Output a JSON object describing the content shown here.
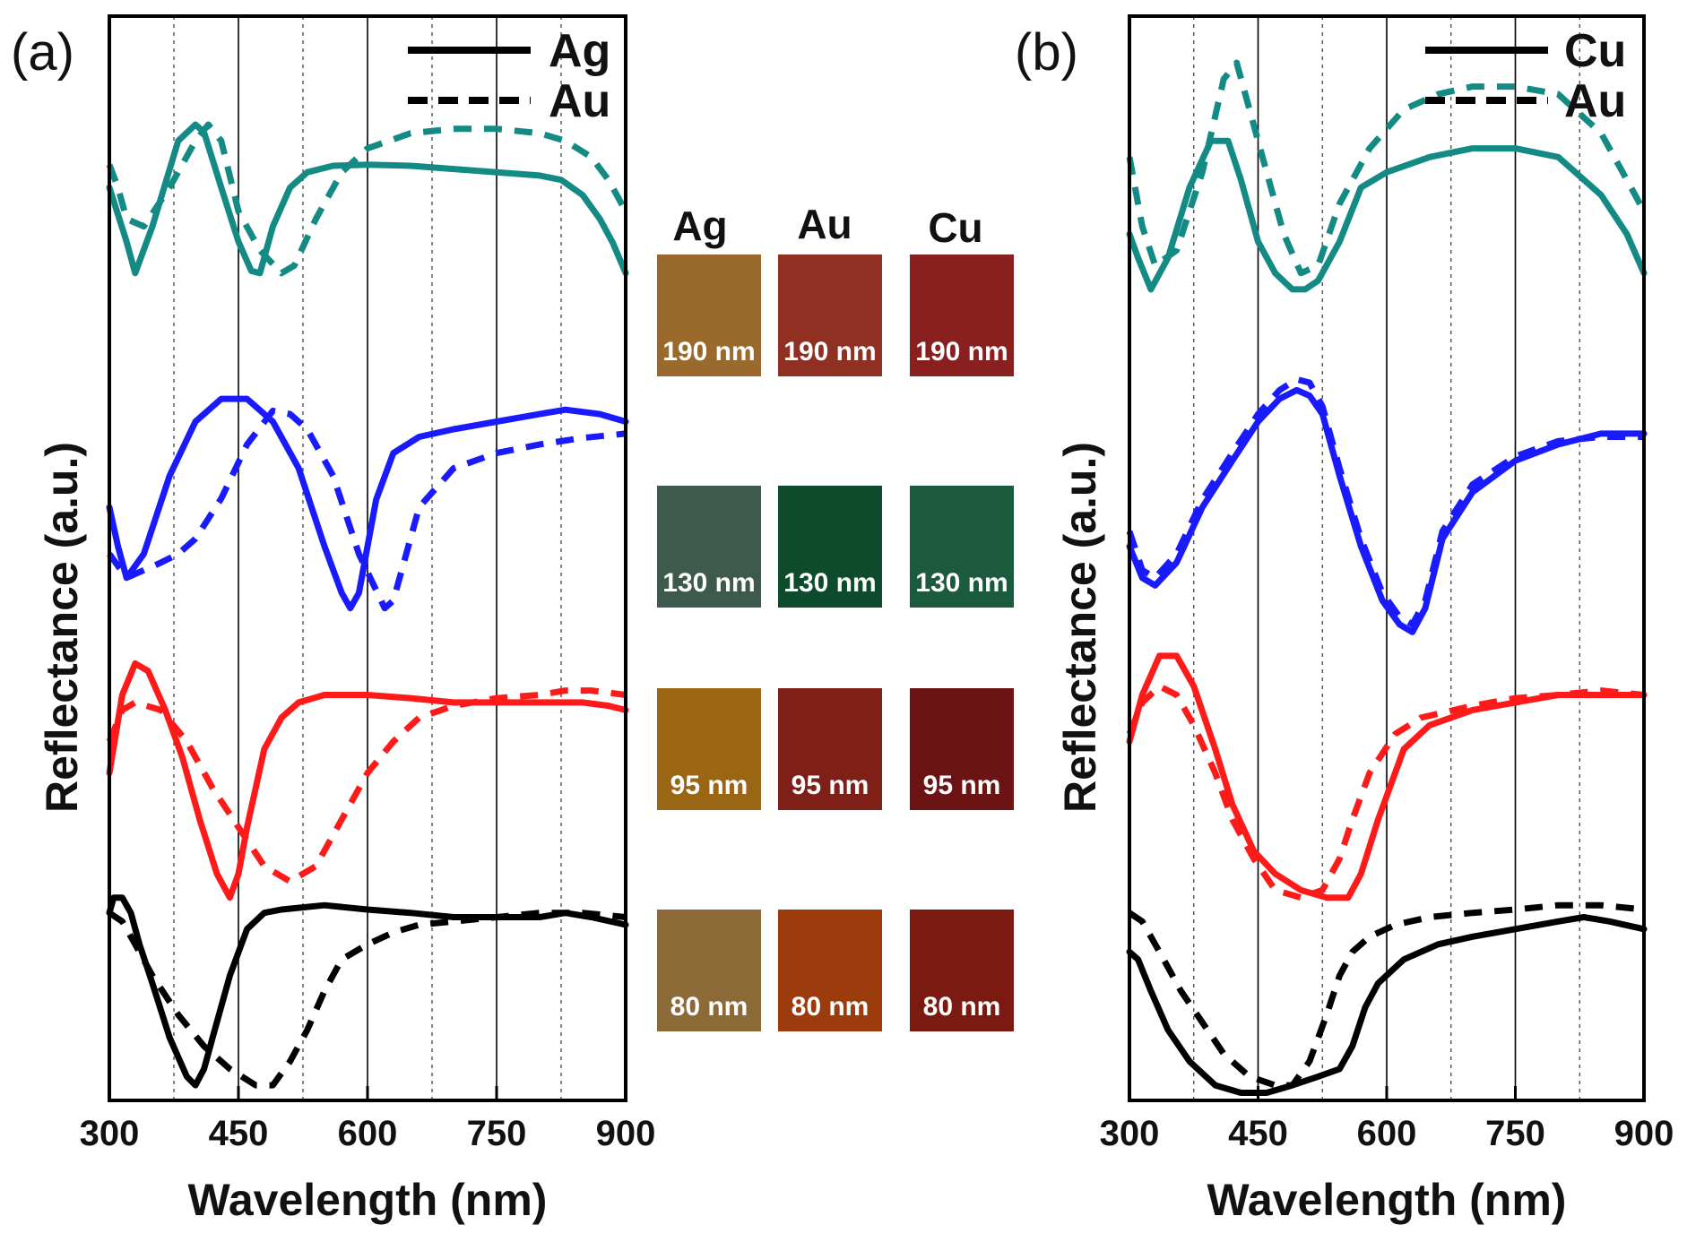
{
  "figure": {
    "ylabel": "Reflectance (a.u.)",
    "xlabel": "Wavelength (nm)"
  },
  "colors": {
    "190 nm": "#138a84",
    "130 nm": "#1a1aff",
    "95 nm": "#ff1a1a",
    "80 nm": "#000000"
  },
  "chart_data": [
    {
      "type": "line",
      "panel": "(a)",
      "title": "",
      "xlabel": "Wavelength (nm)",
      "ylabel": "Reflectance (a.u.)",
      "xlim": [
        300,
        900
      ],
      "ylim": [
        0,
        1
      ],
      "xticks": [
        "300",
        "450",
        "600",
        "750",
        "900"
      ],
      "vlines_solid": [
        450,
        600,
        750
      ],
      "vlines_dotted": [
        375,
        525,
        675,
        825
      ],
      "legend": [
        {
          "label": "Ag",
          "style": "solid"
        },
        {
          "label": "Au",
          "style": "dashed"
        }
      ],
      "series": [
        {
          "name": "Ag 190 nm",
          "material": "Ag",
          "thickness": "190 nm",
          "style": "solid",
          "x": [
            300,
            320,
            330,
            350,
            380,
            400,
            410,
            430,
            450,
            465,
            475,
            490,
            510,
            530,
            560,
            600,
            650,
            700,
            750,
            800,
            825,
            850,
            870,
            885,
            900
          ],
          "y": [
            0.842,
            0.792,
            0.763,
            0.806,
            0.885,
            0.9,
            0.893,
            0.842,
            0.792,
            0.765,
            0.763,
            0.806,
            0.842,
            0.856,
            0.862,
            0.863,
            0.862,
            0.859,
            0.856,
            0.853,
            0.849,
            0.835,
            0.813,
            0.791,
            0.763
          ]
        },
        {
          "name": "Au 190 nm",
          "material": "Au",
          "thickness": "190 nm",
          "style": "dashed",
          "x": [
            300,
            310,
            320,
            340,
            370,
            400,
            415,
            430,
            450,
            475,
            500,
            515,
            540,
            570,
            600,
            650,
            700,
            750,
            800,
            830,
            860,
            880,
            900
          ],
          "y": [
            0.863,
            0.842,
            0.813,
            0.806,
            0.842,
            0.885,
            0.9,
            0.885,
            0.82,
            0.784,
            0.763,
            0.77,
            0.813,
            0.856,
            0.878,
            0.892,
            0.896,
            0.896,
            0.892,
            0.885,
            0.87,
            0.849,
            0.82
          ]
        },
        {
          "name": "Ag 130 nm",
          "material": "Ag",
          "thickness": "130 nm",
          "style": "solid",
          "x": [
            300,
            310,
            320,
            340,
            370,
            400,
            430,
            460,
            490,
            520,
            550,
            570,
            580,
            590,
            610,
            630,
            660,
            700,
            750,
            800,
            830,
            870,
            900
          ],
          "y": [
            0.547,
            0.511,
            0.482,
            0.504,
            0.576,
            0.626,
            0.647,
            0.647,
            0.626,
            0.583,
            0.511,
            0.468,
            0.454,
            0.468,
            0.554,
            0.597,
            0.612,
            0.619,
            0.626,
            0.633,
            0.637,
            0.633,
            0.626
          ]
        },
        {
          "name": "Au 130 nm",
          "material": "Au",
          "thickness": "130 nm",
          "style": "dashed",
          "x": [
            300,
            320,
            340,
            360,
            380,
            400,
            430,
            460,
            490,
            510,
            530,
            560,
            590,
            620,
            630,
            660,
            700,
            750,
            800,
            850,
            900
          ],
          "y": [
            0.504,
            0.482,
            0.489,
            0.496,
            0.504,
            0.518,
            0.555,
            0.605,
            0.636,
            0.633,
            0.619,
            0.576,
            0.504,
            0.454,
            0.461,
            0.547,
            0.583,
            0.597,
            0.605,
            0.611,
            0.615
          ]
        },
        {
          "name": "Ag 95 nm",
          "material": "Ag",
          "thickness": "95 nm",
          "style": "solid",
          "x": [
            300,
            315,
            330,
            345,
            365,
            385,
            405,
            425,
            440,
            450,
            460,
            480,
            500,
            520,
            550,
            600,
            650,
            700,
            750,
            800,
            850,
            880,
            900
          ],
          "y": [
            0.302,
            0.374,
            0.403,
            0.396,
            0.36,
            0.316,
            0.259,
            0.209,
            0.187,
            0.209,
            0.252,
            0.324,
            0.353,
            0.367,
            0.374,
            0.374,
            0.371,
            0.367,
            0.367,
            0.367,
            0.367,
            0.364,
            0.36
          ]
        },
        {
          "name": "Au 95 nm",
          "material": "Au",
          "thickness": "95 nm",
          "style": "dashed",
          "x": [
            300,
            315,
            330,
            360,
            390,
            420,
            450,
            480,
            510,
            540,
            570,
            600,
            630,
            660,
            700,
            750,
            800,
            830,
            860,
            900
          ],
          "y": [
            0.331,
            0.36,
            0.367,
            0.36,
            0.331,
            0.288,
            0.252,
            0.216,
            0.202,
            0.216,
            0.259,
            0.302,
            0.331,
            0.353,
            0.364,
            0.371,
            0.374,
            0.378,
            0.378,
            0.374
          ]
        },
        {
          "name": "Ag 80 nm",
          "material": "Ag",
          "thickness": "80 nm",
          "style": "solid",
          "x": [
            300,
            305,
            315,
            325,
            335,
            350,
            370,
            390,
            400,
            410,
            420,
            440,
            460,
            480,
            500,
            550,
            600,
            650,
            700,
            750,
            800,
            830,
            860,
            900
          ],
          "y": [
            0.173,
            0.187,
            0.187,
            0.173,
            0.144,
            0.108,
            0.058,
            0.022,
            0.014,
            0.029,
            0.058,
            0.115,
            0.158,
            0.173,
            0.176,
            0.18,
            0.176,
            0.173,
            0.169,
            0.169,
            0.169,
            0.173,
            0.169,
            0.162
          ]
        },
        {
          "name": "Au 80 nm",
          "material": "Au",
          "thickness": "80 nm",
          "style": "dashed",
          "x": [
            300,
            315,
            330,
            350,
            380,
            410,
            440,
            470,
            490,
            510,
            530,
            550,
            570,
            600,
            630,
            660,
            700,
            750,
            800,
            850,
            900
          ],
          "y": [
            0.173,
            0.165,
            0.144,
            0.115,
            0.079,
            0.05,
            0.029,
            0.014,
            0.014,
            0.036,
            0.065,
            0.101,
            0.13,
            0.144,
            0.155,
            0.162,
            0.165,
            0.169,
            0.173,
            0.173,
            0.169
          ]
        }
      ]
    },
    {
      "type": "line",
      "panel": "(b)",
      "title": "",
      "xlabel": "Wavelength (nm)",
      "ylabel": "Reflectance (a.u.)",
      "xlim": [
        300,
        900
      ],
      "ylim": [
        0,
        1
      ],
      "xticks": [
        "300",
        "450",
        "600",
        "750",
        "900"
      ],
      "vlines_solid": [
        450,
        600,
        750
      ],
      "vlines_dotted": [
        375,
        525,
        675,
        825
      ],
      "legend": [
        {
          "label": "Cu",
          "style": "solid"
        },
        {
          "label": "Au",
          "style": "dashed"
        }
      ],
      "series": [
        {
          "name": "Cu 190 nm",
          "material": "Cu",
          "thickness": "190 nm",
          "style": "solid",
          "x": [
            300,
            310,
            325,
            345,
            370,
            395,
            415,
            430,
            450,
            470,
            490,
            505,
            520,
            545,
            570,
            600,
            650,
            700,
            750,
            800,
            850,
            880,
            900
          ],
          "y": [
            0.799,
            0.777,
            0.748,
            0.777,
            0.842,
            0.885,
            0.885,
            0.849,
            0.792,
            0.763,
            0.748,
            0.748,
            0.756,
            0.792,
            0.842,
            0.856,
            0.87,
            0.878,
            0.878,
            0.87,
            0.835,
            0.799,
            0.763
          ]
        },
        {
          "name": "Au 190 nm",
          "material": "Au",
          "thickness": "190 nm",
          "style": "dashed",
          "x": [
            300,
            315,
            330,
            355,
            385,
            410,
            425,
            440,
            460,
            480,
            500,
            520,
            545,
            580,
            620,
            660,
            700,
            750,
            800,
            850,
            880,
            900
          ],
          "y": [
            0.87,
            0.806,
            0.77,
            0.784,
            0.856,
            0.942,
            0.957,
            0.914,
            0.856,
            0.799,
            0.763,
            0.77,
            0.827,
            0.878,
            0.914,
            0.928,
            0.935,
            0.935,
            0.928,
            0.892,
            0.849,
            0.82
          ]
        },
        {
          "name": "Cu 130 nm",
          "material": "Cu",
          "thickness": "130 nm",
          "style": "solid",
          "x": [
            300,
            315,
            330,
            355,
            385,
            420,
            450,
            475,
            495,
            510,
            525,
            545,
            570,
            595,
            615,
            630,
            645,
            665,
            700,
            750,
            800,
            850,
            900
          ],
          "y": [
            0.511,
            0.482,
            0.475,
            0.496,
            0.547,
            0.59,
            0.626,
            0.647,
            0.655,
            0.65,
            0.633,
            0.576,
            0.511,
            0.461,
            0.439,
            0.432,
            0.454,
            0.518,
            0.561,
            0.59,
            0.605,
            0.615,
            0.615
          ]
        },
        {
          "name": "Au 130 nm",
          "material": "Au",
          "thickness": "130 nm",
          "style": "dashed",
          "x": [
            300,
            315,
            330,
            355,
            385,
            420,
            450,
            475,
            495,
            510,
            525,
            545,
            570,
            595,
            615,
            630,
            645,
            665,
            700,
            750,
            800,
            850,
            900
          ],
          "y": [
            0.525,
            0.489,
            0.482,
            0.504,
            0.554,
            0.597,
            0.633,
            0.655,
            0.665,
            0.662,
            0.64,
            0.583,
            0.518,
            0.468,
            0.446,
            0.439,
            0.461,
            0.525,
            0.568,
            0.594,
            0.608,
            0.612,
            0.612
          ]
        },
        {
          "name": "Cu 95 nm",
          "material": "Cu",
          "thickness": "95 nm",
          "style": "solid",
          "x": [
            300,
            315,
            335,
            355,
            375,
            400,
            420,
            445,
            470,
            500,
            530,
            555,
            570,
            590,
            620,
            650,
            700,
            750,
            800,
            850,
            900
          ],
          "y": [
            0.331,
            0.374,
            0.41,
            0.41,
            0.382,
            0.324,
            0.273,
            0.23,
            0.209,
            0.194,
            0.187,
            0.187,
            0.209,
            0.259,
            0.324,
            0.346,
            0.36,
            0.367,
            0.374,
            0.374,
            0.374
          ]
        },
        {
          "name": "Au 95 nm",
          "material": "Au",
          "thickness": "95 nm",
          "style": "dashed",
          "x": [
            300,
            315,
            335,
            355,
            375,
            400,
            420,
            445,
            470,
            500,
            525,
            545,
            560,
            580,
            610,
            640,
            700,
            750,
            800,
            850,
            900
          ],
          "y": [
            0.338,
            0.367,
            0.382,
            0.374,
            0.346,
            0.302,
            0.259,
            0.223,
            0.194,
            0.187,
            0.194,
            0.223,
            0.259,
            0.302,
            0.338,
            0.353,
            0.364,
            0.371,
            0.374,
            0.378,
            0.374
          ]
        },
        {
          "name": "Cu 80 nm",
          "material": "Cu",
          "thickness": "80 nm",
          "style": "solid",
          "x": [
            300,
            310,
            325,
            345,
            370,
            400,
            430,
            460,
            490,
            520,
            545,
            560,
            575,
            590,
            620,
            660,
            700,
            750,
            800,
            830,
            860,
            900
          ],
          "y": [
            0.137,
            0.13,
            0.101,
            0.065,
            0.036,
            0.014,
            0.007,
            0.007,
            0.014,
            0.022,
            0.029,
            0.05,
            0.086,
            0.108,
            0.13,
            0.144,
            0.151,
            0.158,
            0.165,
            0.169,
            0.165,
            0.158
          ]
        },
        {
          "name": "Au 80 nm",
          "material": "Au",
          "thickness": "80 nm",
          "style": "dashed",
          "x": [
            300,
            315,
            335,
            360,
            385,
            410,
            440,
            470,
            490,
            510,
            530,
            545,
            560,
            580,
            610,
            650,
            700,
            750,
            800,
            850,
            900
          ],
          "y": [
            0.173,
            0.165,
            0.137,
            0.101,
            0.072,
            0.043,
            0.022,
            0.014,
            0.014,
            0.036,
            0.079,
            0.115,
            0.137,
            0.151,
            0.162,
            0.169,
            0.173,
            0.176,
            0.18,
            0.18,
            0.176
          ]
        }
      ]
    }
  ],
  "swatches": {
    "headers": [
      "Ag",
      "Au",
      "Cu"
    ],
    "rows": [
      {
        "label": "190 nm",
        "colors": [
          "#9a6a2c",
          "#8f3022",
          "#8a1f1f"
        ]
      },
      {
        "label": "130 nm",
        "colors": [
          "#3e5a4c",
          "#0e4a2c",
          "#1b5a3c"
        ]
      },
      {
        "label": "95 nm",
        "colors": [
          "#9a6614",
          "#7e1f18",
          "#6c1414"
        ]
      },
      {
        "label": "80 nm",
        "colors": [
          "#8c6a38",
          "#9c3c0c",
          "#7a1a10"
        ]
      }
    ]
  }
}
